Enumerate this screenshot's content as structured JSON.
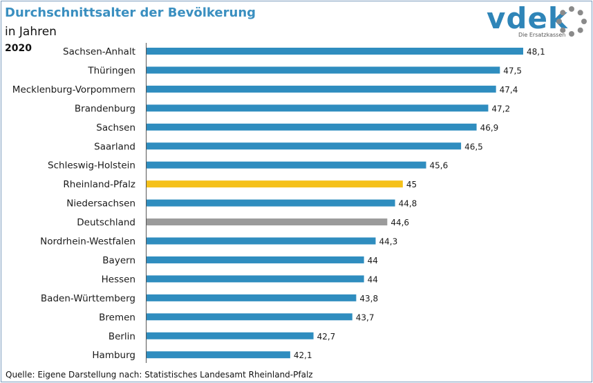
{
  "header": {
    "title": "Durchschnittsalter der Bevölkerung",
    "subtitle": "in Jahren",
    "year": "2020"
  },
  "logo": {
    "word": "vdek",
    "tagline": "Die Ersatzkassen",
    "icon": "dotted-ring-icon"
  },
  "footer": {
    "source": "Quelle: Eigene Darstellung nach: Statistisches Landesamt Rheinland-Pfalz"
  },
  "colors": {
    "default": "#2f8dbf",
    "highlight": "#f5c11a",
    "reference": "#9b9b9b",
    "title": "#3a8fc0"
  },
  "chart_data": {
    "type": "bar",
    "orientation": "horizontal",
    "title": "Durchschnittsalter der Bevölkerung",
    "xlabel": "",
    "ylabel": "",
    "grid": false,
    "categories": [
      "Sachsen-Anhalt",
      "Thüringen",
      "Mecklenburg-Vorpommern",
      "Brandenburg",
      "Sachsen",
      "Saarland",
      "Schleswig-Holstein",
      "Rheinland-Pfalz",
      "Niedersachsen",
      "Deutschland",
      "Nordrhein-Westfalen",
      "Bayern",
      "Hessen",
      "Baden-Württemberg",
      "Bremen",
      "Berlin",
      "Hamburg"
    ],
    "values": [
      48.1,
      47.5,
      47.4,
      47.2,
      46.9,
      46.5,
      45.6,
      45,
      44.8,
      44.6,
      44.3,
      44,
      44,
      43.8,
      43.7,
      42.7,
      42.1
    ],
    "value_labels": [
      "48,1",
      "47,5",
      "47,4",
      "47,2",
      "46,9",
      "46,5",
      "45,6",
      "45",
      "44,8",
      "44,6",
      "44,3",
      "44",
      "44",
      "43,8",
      "43,7",
      "42,7",
      "42,1"
    ],
    "highlight": "Rheinland-Pfalz",
    "reference": "Deutschland",
    "xlim": [
      38.4,
      48.1
    ]
  }
}
